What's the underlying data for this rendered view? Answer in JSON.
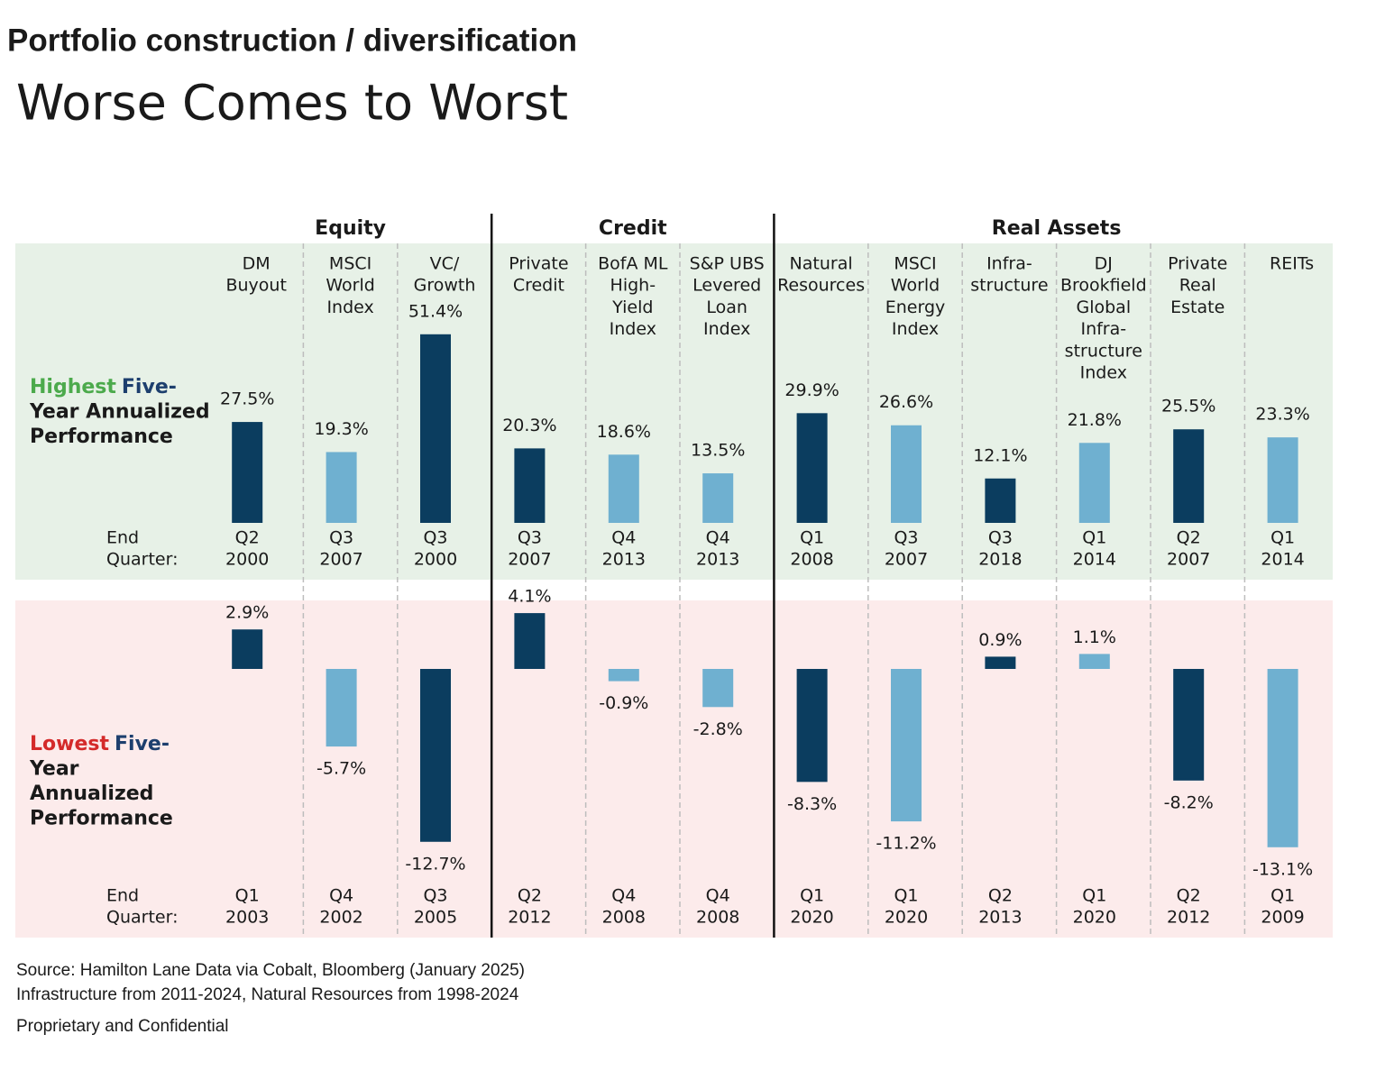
{
  "header": "Portfolio construction / diversification",
  "chart_data": {
    "type": "bar",
    "title": "Worse Comes to Worst",
    "groups": [
      {
        "name": "Equity",
        "categories": [
          [
            "DM",
            "Buyout"
          ],
          [
            "MSCI",
            "World",
            "Index"
          ],
          [
            "VC/",
            "Growth"
          ]
        ]
      },
      {
        "name": "Credit",
        "categories": [
          [
            "Private",
            "Credit"
          ],
          [
            "BofA ML",
            "High-",
            "Yield",
            "Index"
          ],
          [
            "S&P UBS",
            "Levered",
            "Loan",
            "Index"
          ]
        ]
      },
      {
        "name": "Real Assets",
        "categories": [
          [
            "Natural",
            "Resources"
          ],
          [
            "MSCI",
            "World",
            "Energy",
            "Index"
          ],
          [
            "Infra-",
            "structure"
          ],
          [
            "DJ",
            "Brookfield",
            "Global",
            "Infra-",
            "structure",
            "Index"
          ],
          [
            "Private",
            "Real",
            "Estate"
          ],
          [
            "REITs"
          ]
        ]
      }
    ],
    "colors": [
      "#0b3d5f",
      "#6fb0d0",
      "#0b3d5f",
      "#0b3d5f",
      "#6fb0d0",
      "#6fb0d0",
      "#0b3d5f",
      "#6fb0d0",
      "#0b3d5f",
      "#6fb0d0",
      "#0b3d5f",
      "#6fb0d0"
    ],
    "panels": [
      {
        "label": [
          [
            {
              "text": "Highest",
              "color": "#4caa4c"
            },
            {
              "text": "Five-",
              "color": "#1d3f6e"
            }
          ],
          [
            {
              "text": "Year Annualized"
            }
          ],
          [
            {
              "text": "Performance"
            }
          ]
        ],
        "background": "#e7f1e7",
        "ylim": [
          0,
          55
        ],
        "end_label": [
          "End",
          "Quarter:"
        ],
        "values": [
          27.5,
          19.3,
          51.4,
          20.3,
          18.6,
          13.5,
          29.9,
          26.6,
          12.1,
          21.8,
          25.5,
          23.3
        ],
        "value_labels": [
          "27.5%",
          "19.3%",
          "51.4%",
          "20.3%",
          "18.6%",
          "13.5%",
          "29.9%",
          "26.6%",
          "12.1%",
          "21.8%",
          "25.5%",
          "23.3%"
        ],
        "quarters": [
          [
            "Q2",
            "2000"
          ],
          [
            "Q3",
            "2007"
          ],
          [
            "Q3",
            "2000"
          ],
          [
            "Q3",
            "2007"
          ],
          [
            "Q4",
            "2013"
          ],
          [
            "Q4",
            "2013"
          ],
          [
            "Q1",
            "2008"
          ],
          [
            "Q3",
            "2007"
          ],
          [
            "Q3",
            "2018"
          ],
          [
            "Q1",
            "2014"
          ],
          [
            "Q2",
            "2007"
          ],
          [
            "Q1",
            "2014"
          ]
        ]
      },
      {
        "label": [
          [
            {
              "text": "Lowest",
              "color": "#d42a2a"
            },
            {
              "text": "Five-",
              "color": "#1d3f6e"
            }
          ],
          [
            {
              "text": "Year"
            }
          ],
          [
            {
              "text": "Annualized"
            }
          ],
          [
            {
              "text": "Performance"
            }
          ]
        ],
        "background": "#fcebeb",
        "ylim": [
          -14,
          4.2
        ],
        "end_label": [
          "End",
          "Quarter:"
        ],
        "values": [
          2.9,
          -5.7,
          -12.7,
          4.1,
          -0.9,
          -2.8,
          -8.3,
          -11.2,
          0.9,
          1.1,
          -8.2,
          -13.1
        ],
        "value_labels": [
          "2.9%",
          "-5.7%",
          "-12.7%",
          "4.1%",
          "-0.9%",
          "-2.8%",
          "-8.3%",
          "-11.2%",
          "0.9%",
          "1.1%",
          "-8.2%",
          "-13.1%"
        ],
        "quarters": [
          [
            "Q1",
            "2003"
          ],
          [
            "Q4",
            "2002"
          ],
          [
            "Q3",
            "2005"
          ],
          [
            "Q2",
            "2012"
          ],
          [
            "Q4",
            "2008"
          ],
          [
            "Q4",
            "2008"
          ],
          [
            "Q1",
            "2020"
          ],
          [
            "Q1",
            "2020"
          ],
          [
            "Q2",
            "2013"
          ],
          [
            "Q1",
            "2020"
          ],
          [
            "Q2",
            "2012"
          ],
          [
            "Q1",
            "2009"
          ]
        ]
      }
    ]
  },
  "notes": [
    "Source: Hamilton Lane Data via Cobalt, Bloomberg (January 2025)",
    "Infrastructure from 2011-2024, Natural Resources from 1998-2024",
    "Proprietary and Confidential"
  ]
}
